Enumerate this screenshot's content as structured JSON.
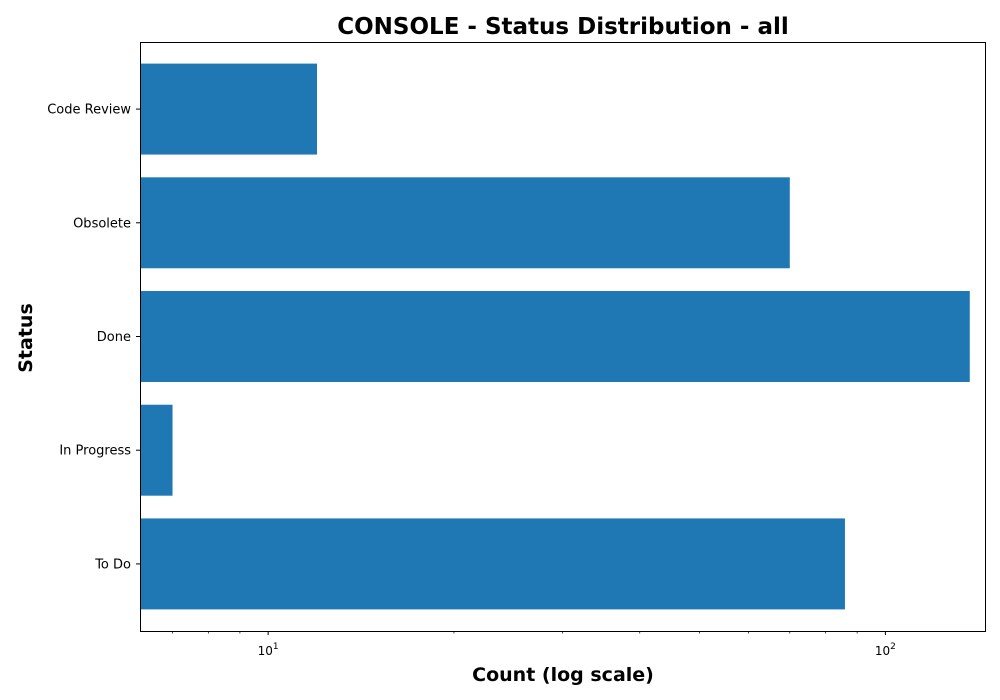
{
  "chart_data": {
    "type": "bar",
    "orientation": "horizontal",
    "title": "CONSOLE - Status Distribution - all",
    "xlabel": "Count (log scale)",
    "ylabel": "Status",
    "x_scale": "log",
    "xlim": [
      6.2,
      145
    ],
    "x_ticks": [
      {
        "value": 10,
        "base": "10",
        "exp": "1"
      },
      {
        "value": 100,
        "base": "10",
        "exp": "2"
      }
    ],
    "categories": [
      "Code Review",
      "Obsolete",
      "Done",
      "In Progress",
      "To Do"
    ],
    "values": [
      12,
      70,
      137,
      7,
      86
    ],
    "bar_color": "#1f77b4",
    "grid": false,
    "legend": "none"
  }
}
